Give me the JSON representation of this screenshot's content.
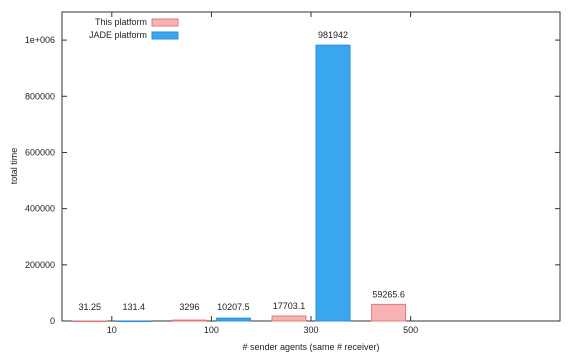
{
  "chart_data": {
    "type": "bar",
    "categories": [
      "10",
      "100",
      "300",
      "500"
    ],
    "series": [
      {
        "name": "This platform",
        "values": [
          31.25,
          3296,
          17703.1,
          59265.6
        ],
        "labels": [
          "31.25",
          "3296",
          "17703.1",
          "59265.6"
        ],
        "fill": "#f8b4b4",
        "stroke": "#e07a7a"
      },
      {
        "name": "JADE platform",
        "values": [
          131.4,
          10207.5,
          981942,
          null
        ],
        "labels": [
          "131.4",
          "10207.5",
          "981942",
          ""
        ],
        "fill": "#3aa6ee",
        "stroke": "#2b8fd6"
      }
    ],
    "xlabel": "# sender agents (same # receiver)",
    "ylabel": "total time",
    "ylim": [
      0,
      1100000
    ],
    "yticks": [
      0,
      200000,
      400000,
      600000,
      800000,
      1000000
    ],
    "ytick_labels": [
      "0",
      "200000",
      "400000",
      "600000",
      "800000",
      "1e+006"
    ],
    "legend_position": "top-left",
    "grid": false
  }
}
